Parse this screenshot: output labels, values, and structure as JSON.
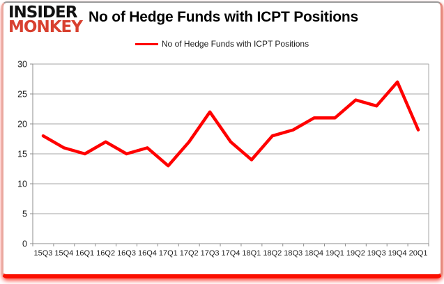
{
  "logo": {
    "line1": "INSIDER",
    "line2": "MONKEY",
    "brand_color": "#d8402f"
  },
  "header": {
    "title": "No of Hedge Funds with ICPT Positions"
  },
  "legend": {
    "label": "No of Hedge Funds with ICPT Positions",
    "line_color": "#ff0000"
  },
  "chart_data": {
    "type": "line",
    "title": "No of Hedge Funds with ICPT Positions",
    "categories": [
      "15Q3",
      "15Q4",
      "16Q1",
      "16Q2",
      "16Q3",
      "16Q4",
      "17Q1",
      "17Q2",
      "17Q3",
      "17Q4",
      "18Q1",
      "18Q2",
      "18Q3",
      "18Q4",
      "19Q1",
      "19Q2",
      "19Q3",
      "19Q4",
      "20Q1"
    ],
    "series": [
      {
        "name": "No of Hedge Funds with ICPT Positions",
        "color": "#ff0000",
        "values": [
          18,
          16,
          15,
          17,
          15,
          16,
          13,
          17,
          22,
          17,
          14,
          18,
          19,
          21,
          21,
          24,
          23,
          27,
          19
        ]
      }
    ],
    "xlabel": "",
    "ylabel": "",
    "ylim": [
      0,
      30
    ],
    "yticks": [
      0,
      5,
      10,
      15,
      20,
      25,
      30
    ],
    "grid": true,
    "legend_position": "top-center",
    "gridline_color": "#a6a6a6",
    "axis_color": "#8c8c8c",
    "tick_label_color": "#1a1a1a",
    "line_width": 4.5
  }
}
